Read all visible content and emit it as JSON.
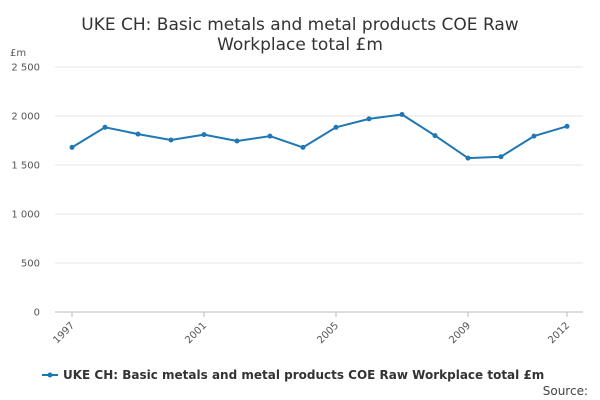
{
  "chart_data": {
    "type": "line",
    "title_lines": [
      "UKE CH: Basic metals and metal products COE Raw",
      "Workplace total £m"
    ],
    "y_unit_label": "£m",
    "x": [
      1997,
      1998,
      1999,
      2000,
      2001,
      2002,
      2003,
      2004,
      2005,
      2006,
      2007,
      2008,
      2009,
      2010,
      2011,
      2012
    ],
    "x_tick_values": [
      1997,
      2001,
      2005,
      2009,
      2012
    ],
    "x_tick_labels": [
      "1997",
      "2001",
      "2005",
      "2009",
      "2012"
    ],
    "ylim": [
      0,
      2500
    ],
    "y_tick_values": [
      0,
      500,
      1000,
      1500,
      2000,
      2500
    ],
    "y_tick_labels": [
      "0",
      "500",
      "1 000",
      "1 500",
      "2 000",
      "2 500"
    ],
    "grid": true,
    "legend_position": "bottom",
    "series": [
      {
        "name": "UKE CH: Basic metals and metal products COE Raw Workplace total £m",
        "color": "#1f77b4",
        "values": [
          1680,
          1885,
          1815,
          1755,
          1810,
          1745,
          1795,
          1680,
          1885,
          1970,
          2015,
          1800,
          1570,
          1585,
          1795,
          1895
        ]
      }
    ]
  },
  "legend": {
    "label": "UKE CH: Basic metals and metal products COE Raw Workplace total £m"
  },
  "footer": {
    "source_label": "Source:"
  }
}
